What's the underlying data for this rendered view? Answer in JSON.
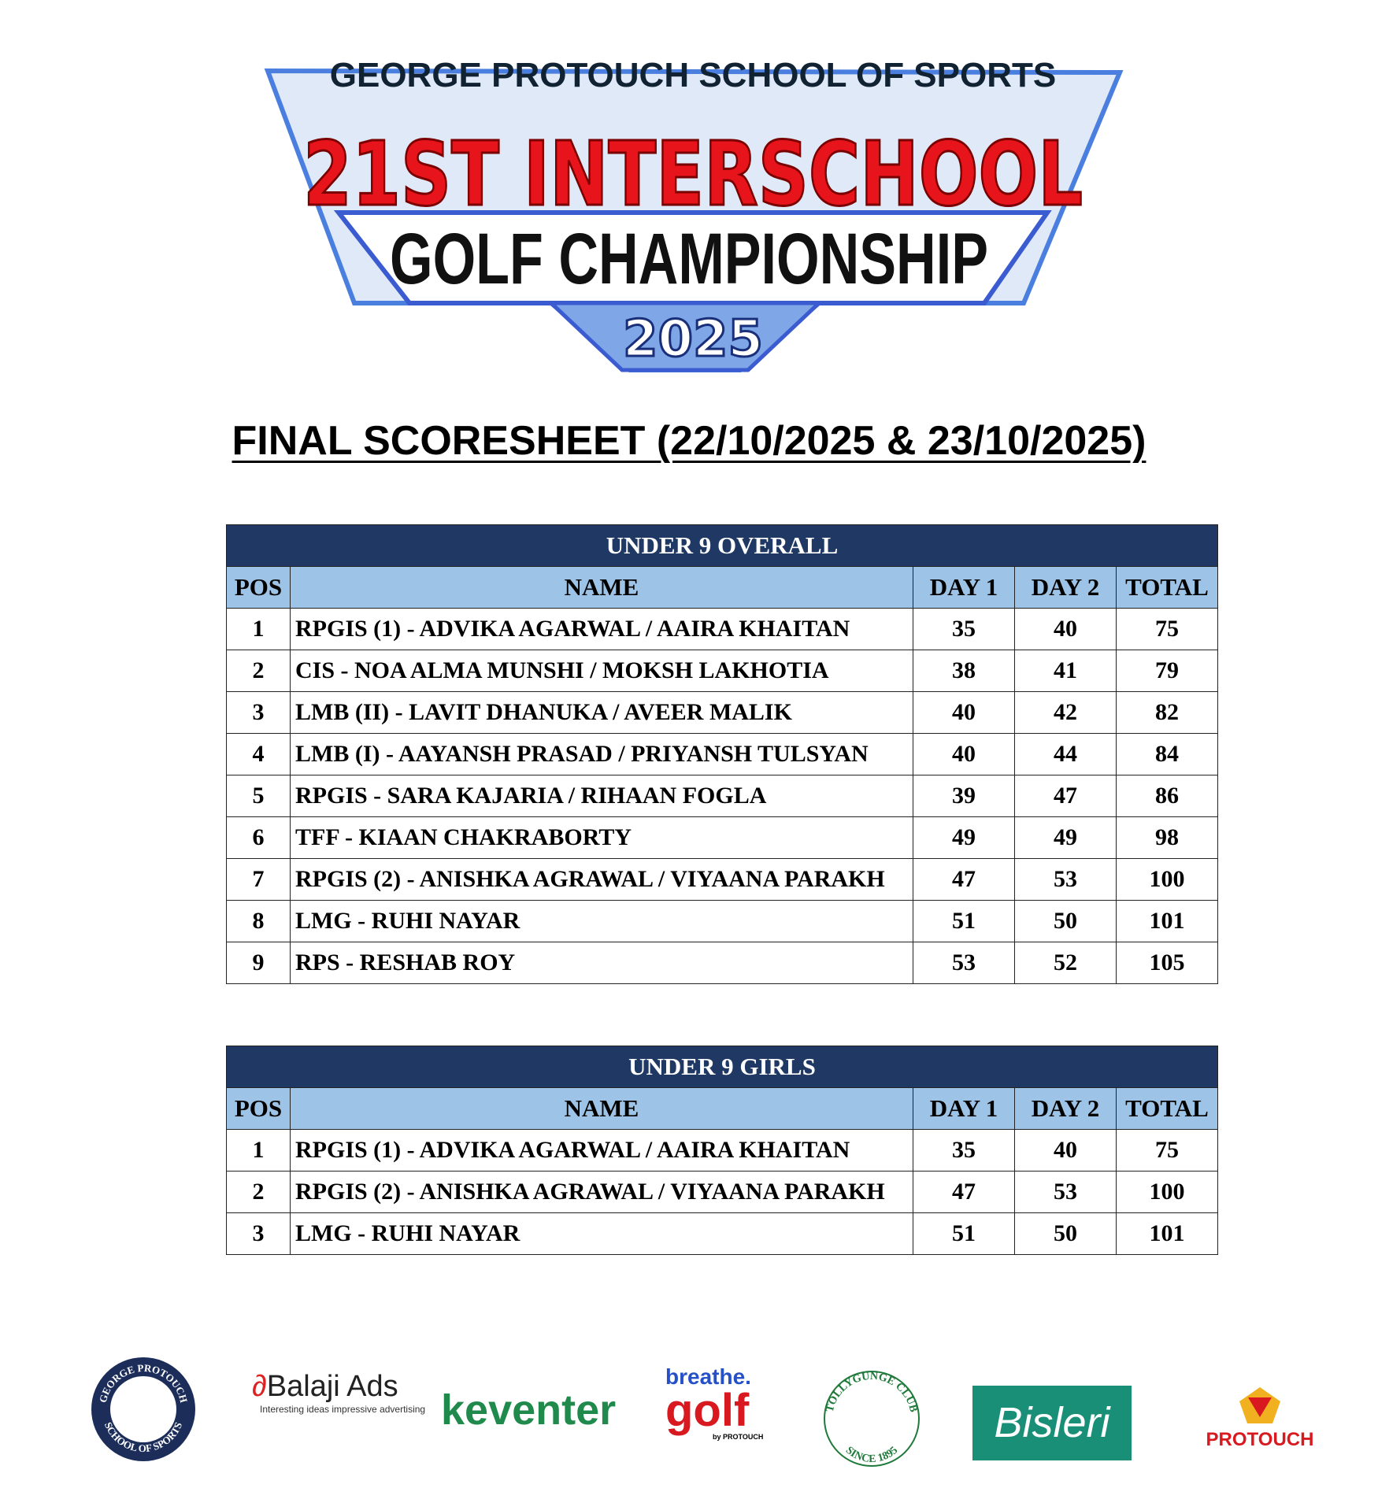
{
  "header": {
    "organizer": "GEORGE PROTOUCH SCHOOL OF SPORTS",
    "event": "21ST INTERSCHOOL",
    "subtitle": "GOLF CHAMPIONSHIP",
    "year": "2025"
  },
  "heading": "FINAL SCORESHEET (22/10/2025 & 23/10/2025)",
  "tables": [
    {
      "title": "UNDER 9 OVERALL",
      "columns": [
        "POS",
        "NAME",
        "DAY 1",
        "DAY 2",
        "TOTAL"
      ],
      "rows": [
        [
          1,
          "RPGIS (1) - ADVIKA AGARWAL / AAIRA KHAITAN",
          35,
          40,
          75
        ],
        [
          2,
          "CIS - NOA ALMA MUNSHI / MOKSH LAKHOTIA",
          38,
          41,
          79
        ],
        [
          3,
          "LMB (II) - LAVIT DHANUKA / AVEER MALIK",
          40,
          42,
          82
        ],
        [
          4,
          "LMB (I) - AAYANSH PRASAD / PRIYANSH TULSYAN",
          40,
          44,
          84
        ],
        [
          5,
          "RPGIS - SARA KAJARIA / RIHAAN FOGLA",
          39,
          47,
          86
        ],
        [
          6,
          "TFF - KIAAN CHAKRABORTY",
          49,
          49,
          98
        ],
        [
          7,
          "RPGIS (2) - ANISHKA AGRAWAL / VIYAANA PARAKH",
          47,
          53,
          100
        ],
        [
          8,
          "LMG - RUHI NAYAR",
          51,
          50,
          101
        ],
        [
          9,
          "RPS - RESHAB ROY",
          53,
          52,
          105
        ]
      ]
    },
    {
      "title": "UNDER 9 GIRLS",
      "columns": [
        "POS",
        "NAME",
        "DAY 1",
        "DAY 2",
        "TOTAL"
      ],
      "rows": [
        [
          1,
          "RPGIS (1) - ADVIKA AGARWAL / AAIRA KHAITAN",
          35,
          40,
          75
        ],
        [
          2,
          "RPGIS (2) - ANISHKA AGRAWAL / VIYAANA PARAKH",
          47,
          53,
          100
        ],
        [
          3,
          "LMG - RUHI NAYAR",
          51,
          50,
          101
        ]
      ]
    }
  ],
  "sponsors": {
    "school": [
      "GEORGE PROTOUCH",
      "SCHOOL OF SPORTS"
    ],
    "balaji": [
      "Balaji Ads",
      "Interesting ideas impressive advertising"
    ],
    "keventer": "keventer",
    "breathe": [
      "breathe.",
      "golf",
      "by PROTOUCH"
    ],
    "tollygunge": [
      "TOLLYGUNGE CLUB",
      "SINCE 1895"
    ],
    "bisleri": "Bisleri",
    "protouch": "PROTOUCH"
  }
}
